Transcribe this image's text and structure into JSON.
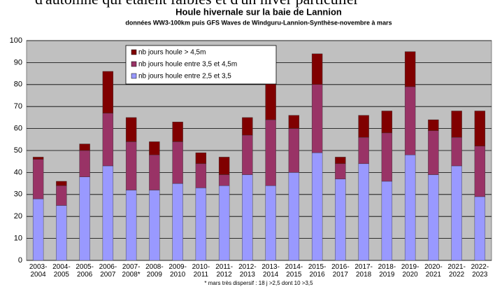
{
  "top_text": "d'automne qui étaient faibles et d'un hiver particulier",
  "chart_data": {
    "type": "stacked_bar",
    "title": "Houle hivernale sur la baie de Lannion",
    "subtitle": "données  WW3-100km puis GFS Waves de Windguru-Lannion-Synthèse-novembre à mars",
    "footnote": "* mars très dispersif : 18 j >2,5 dont 10 >3,5",
    "categories": [
      "2003-2004",
      "2004-2005",
      "2005-2006",
      "2006-2007",
      "2007-2008*",
      "2008-2009",
      "2009-2010",
      "2010-2011",
      "2011-2012",
      "2012-2013",
      "2013-2014",
      "2014-2015",
      "2015-2016",
      "2016-2017",
      "2017-2018",
      "2018-2019",
      "2019-2020",
      "2020-2021",
      "2021-2022",
      "2022-2023"
    ],
    "series": [
      {
        "name": "nb jours houle entre 2,5 et 3,5",
        "color": "#9999ff",
        "values": [
          28,
          25,
          38,
          43,
          32,
          32,
          35,
          33,
          34,
          39,
          34,
          40,
          49,
          37,
          44,
          36,
          48,
          39,
          43,
          29
        ]
      },
      {
        "name": "nb jours houle entre 3,5 et 4,5m",
        "color": "#993366",
        "values": [
          18,
          9,
          12,
          24,
          22,
          16,
          19,
          11,
          5,
          18,
          30,
          20,
          31,
          7,
          12,
          22,
          31,
          20,
          13,
          23
        ]
      },
      {
        "name": "nb jours houle > 4,5m",
        "color": "#800000",
        "values": [
          1,
          2,
          3,
          19,
          11,
          6,
          9,
          5,
          8,
          8,
          31,
          6,
          14,
          3,
          10,
          10,
          16,
          5,
          12,
          16
        ]
      }
    ],
    "ylim": [
      0,
      100
    ],
    "yticks": [
      0,
      10,
      20,
      30,
      40,
      50,
      60,
      70,
      80,
      90,
      100
    ],
    "grid": true,
    "legend": "top-left"
  }
}
